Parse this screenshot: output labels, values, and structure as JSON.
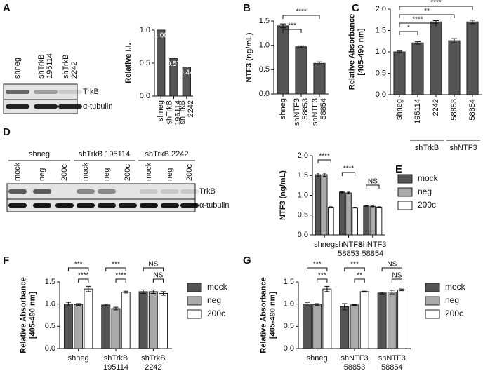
{
  "chart_data": [
    {
      "type": "bar",
      "panel": "A",
      "ylabel": [
        "Relative I.I."
      ],
      "categories": [
        "shneg",
        "shTrkB 195114",
        "shTrkB 2242"
      ],
      "values": [
        1.0,
        0.57,
        0.44
      ],
      "value_labels": [
        "1.00",
        "0.57",
        "0.44"
      ],
      "color": "#555555",
      "ylim": [
        0,
        1.0
      ],
      "yticks": [
        {
          "value": 0,
          "label": "0.0"
        },
        {
          "value": 0.5,
          "label": "0.5"
        },
        {
          "value": 1.0,
          "label": "1.0"
        }
      ]
    },
    {
      "type": "bar",
      "panel": "B",
      "ylabel": [
        "NTF3 (ng/mL)"
      ],
      "categories": [
        "shneg",
        "shNTF3 58853",
        "shNTF3 58854"
      ],
      "values": [
        1.4,
        0.97,
        0.63
      ],
      "errors": [
        0.04,
        0.02,
        0.03
      ],
      "color": "#555555",
      "ylim": [
        0,
        1.5
      ],
      "yticks": [
        {
          "value": 0,
          "label": "0.0"
        },
        {
          "value": 0.5,
          "label": "0.5"
        },
        {
          "value": 1.0,
          "label": "1.0"
        },
        {
          "value": 1.5,
          "label": "1.5"
        }
      ],
      "significance": [
        "****",
        "***"
      ]
    },
    {
      "type": "bar",
      "panel": "C",
      "ylabel": [
        "Relative Absorbance",
        "[405-490 nm]"
      ],
      "categories": [
        "shneg",
        "195114",
        "2242",
        "58853",
        "58854"
      ],
      "values": [
        1.0,
        1.21,
        1.7,
        1.26,
        1.7
      ],
      "errors": [
        0.02,
        0.03,
        0.03,
        0.05,
        0.04
      ],
      "color": "#555555",
      "ylim": [
        0,
        2.0
      ],
      "yticks": [
        {
          "value": 0,
          "label": "0.0"
        },
        {
          "value": 0.5,
          "label": "0.5"
        },
        {
          "value": 1.0,
          "label": "1.0"
        },
        {
          "value": 1.5,
          "label": "1.5"
        },
        {
          "value": 2.0,
          "label": "2.0"
        }
      ],
      "groups": [
        "shTrkB",
        "shNTF3"
      ],
      "significance": [
        "****",
        "**",
        "****",
        "*"
      ]
    },
    {
      "type": "grouped-bar",
      "panel": "E",
      "ylabel": [
        "NTF3 (ng/mL)"
      ],
      "categories": [
        "shneg",
        "shNTF3 58853",
        "shNTF3 58854"
      ],
      "series": [
        {
          "name": "mock",
          "color": "#555555",
          "values": [
            1.52,
            1.08,
            0.73
          ],
          "errors": [
            0.04,
            0.02,
            0.01
          ]
        },
        {
          "name": "neg",
          "color": "#aaaaaa",
          "values": [
            1.52,
            1.06,
            0.72
          ],
          "errors": [
            0.04,
            0.02,
            0.01
          ]
        },
        {
          "name": "200c",
          "color": "#ffffff",
          "values": [
            0.7,
            0.69,
            0.7
          ],
          "errors": [
            0.01,
            0.01,
            0.01
          ]
        }
      ],
      "ylim": [
        0,
        2.0
      ],
      "yticks": [
        {
          "value": 0,
          "label": "0.0"
        },
        {
          "value": 0.5,
          "label": "0.5"
        },
        {
          "value": 1.0,
          "label": "1.0"
        },
        {
          "value": 1.5,
          "label": "1.5"
        },
        {
          "value": 2.0,
          "label": "2.0"
        }
      ],
      "significance": [
        "****",
        "****",
        "NS"
      ]
    },
    {
      "type": "grouped-bar",
      "panel": "F",
      "ylabel": [
        "Relative Absorbance",
        "[405-490 nm]"
      ],
      "categories": [
        "shneg",
        "shTrkB 195114",
        "shTrkB 2242"
      ],
      "series": [
        {
          "name": "mock",
          "color": "#555555",
          "values": [
            1.0,
            0.98,
            1.28
          ],
          "errors": [
            0.04,
            0.02,
            0.04
          ]
        },
        {
          "name": "neg",
          "color": "#aaaaaa",
          "values": [
            0.99,
            0.9,
            1.28
          ],
          "errors": [
            0.02,
            0.03,
            0.04
          ]
        },
        {
          "name": "200c",
          "color": "#ffffff",
          "values": [
            1.34,
            1.27,
            1.24
          ],
          "errors": [
            0.06,
            0.02,
            0.04
          ]
        }
      ],
      "ylim": [
        0,
        1.5
      ],
      "yticks": [
        {
          "value": 0,
          "label": "0.0"
        },
        {
          "value": 0.5,
          "label": "0.5"
        },
        {
          "value": 1.0,
          "label": "1.0"
        },
        {
          "value": 1.5,
          "label": "1.5"
        }
      ],
      "significance": [
        "***",
        "****",
        "***",
        "****",
        "NS",
        "NS"
      ]
    },
    {
      "type": "grouped-bar",
      "panel": "G",
      "ylabel": [
        "Relative Absorbance",
        "[405-490 nm]"
      ],
      "categories": [
        "shneg",
        "shNTF3 58853",
        "shNTF3 58854"
      ],
      "series": [
        {
          "name": "mock",
          "color": "#555555",
          "values": [
            1.0,
            0.94,
            1.25
          ],
          "errors": [
            0.04,
            0.07,
            0.02
          ]
        },
        {
          "name": "neg",
          "color": "#aaaaaa",
          "values": [
            0.99,
            0.98,
            1.27
          ],
          "errors": [
            0.02,
            0.01,
            0.04
          ]
        },
        {
          "name": "200c",
          "color": "#ffffff",
          "values": [
            1.34,
            1.28,
            1.32
          ],
          "errors": [
            0.06,
            0.01,
            0.02
          ]
        }
      ],
      "ylim": [
        0,
        1.5
      ],
      "yticks": [
        {
          "value": 0,
          "label": "0.0"
        },
        {
          "value": 0.5,
          "label": "0.5"
        },
        {
          "value": 1.0,
          "label": "1.0"
        },
        {
          "value": 1.5,
          "label": "1.5"
        }
      ],
      "significance": [
        "***",
        "***",
        "***",
        "**",
        "NS",
        "NS"
      ]
    }
  ],
  "blots": [
    {
      "lanes": [
        "shneg",
        "shTrkB 195114",
        "shTrkB 2242"
      ],
      "bands": [
        "TrkB",
        "α-tubulin"
      ]
    },
    {
      "panel": "D",
      "groups": [
        "shneg",
        "shTrkB 195114",
        "shTrkB 2242"
      ],
      "lanes": [
        "mock",
        "neg",
        "200c",
        "mock",
        "neg",
        "200c",
        "mock",
        "neg",
        "200c"
      ],
      "bands": [
        "TrkB",
        "α-tubulin"
      ]
    }
  ]
}
